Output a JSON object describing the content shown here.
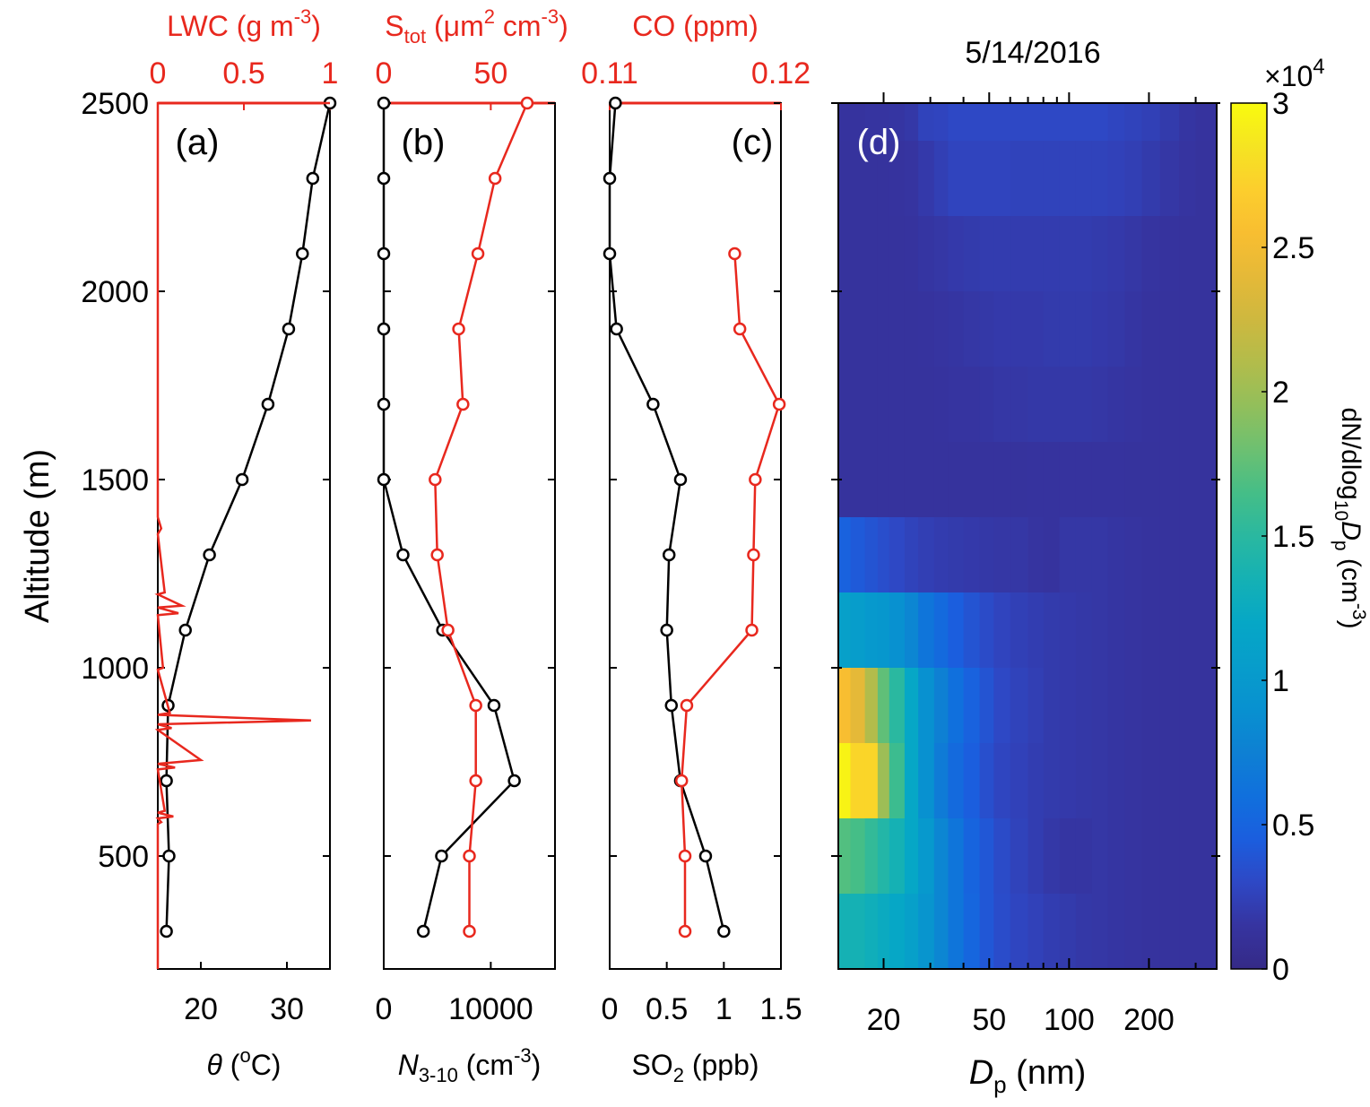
{
  "figure": {
    "date": "5/14/2016",
    "y_axis_label": "Altitude (m)",
    "colors": {
      "red": "#e8281e",
      "black": "#000000"
    }
  },
  "chart_data": [
    {
      "panel": "(a)",
      "type": "line",
      "ylim": [
        200,
        2500
      ],
      "yticks": [
        500,
        1000,
        1500,
        2000,
        2500
      ],
      "bottom_axis": {
        "label_main": "θ",
        "label_rest": " (",
        "label_sup": "o",
        "label_end": "C)",
        "range": [
          15,
          35
        ],
        "ticks": [
          20,
          30
        ],
        "tick_labels": [
          "20",
          "30"
        ]
      },
      "top_axis": {
        "label_main": "LWC (g m",
        "label_sup": "-3",
        "label_end": ")",
        "range": [
          0,
          1
        ],
        "ticks": [
          0,
          0.5,
          1
        ],
        "tick_labels": [
          "0",
          "0.5",
          "1"
        ]
      },
      "series": [
        {
          "axis": "bottom",
          "color": "black",
          "marker": "circle",
          "x": [
            35.0,
            33.0,
            31.8,
            30.2,
            27.8,
            24.8,
            21.0,
            18.2,
            16.2,
            16.0,
            16.3,
            16.0
          ],
          "y": [
            2500,
            2300,
            2100,
            1900,
            1700,
            1500,
            1300,
            1100,
            900,
            700,
            500,
            300
          ]
        },
        {
          "axis": "top",
          "color": "red",
          "marker": "none",
          "profile": [
            [
              1.0,
              2500
            ],
            [
              0.0,
              2500
            ],
            [
              0.0,
              1400
            ],
            [
              0.02,
              1370
            ],
            [
              0.0,
              1355
            ],
            [
              0.04,
              1200
            ],
            [
              0.0,
              1195
            ],
            [
              0.14,
              1165
            ],
            [
              0.0,
              1160
            ],
            [
              0.12,
              1145
            ],
            [
              0.0,
              1140
            ],
            [
              0.03,
              1000
            ],
            [
              0.0,
              995
            ],
            [
              0.07,
              880
            ],
            [
              0.0,
              875
            ],
            [
              0.89,
              860
            ],
            [
              0.0,
              850
            ],
            [
              0.08,
              840
            ],
            [
              0.0,
              835
            ],
            [
              0.25,
              755
            ],
            [
              0.0,
              745
            ],
            [
              0.1,
              735
            ],
            [
              0.0,
              730
            ],
            [
              0.04,
              620
            ],
            [
              0.0,
              615
            ],
            [
              0.09,
              605
            ],
            [
              0.0,
              600
            ],
            [
              0.02,
              590
            ],
            [
              0.0,
              585
            ],
            [
              0.0,
              200
            ]
          ]
        }
      ]
    },
    {
      "panel": "(b)",
      "type": "line",
      "ylim": [
        200,
        2500
      ],
      "yticks": [
        500,
        1000,
        1500,
        2000,
        2500
      ],
      "bottom_axis": {
        "label_main": "N",
        "label_sub": "3-10",
        "label_rest": " (cm",
        "label_sup": "-3",
        "label_end": ")",
        "range": [
          0,
          16000
        ],
        "ticks": [
          0,
          10000
        ],
        "tick_labels": [
          "0",
          "10000"
        ]
      },
      "top_axis": {
        "label_main": "S",
        "label_sub": "tot",
        "label_rest": " (μm",
        "label_sup": "2",
        "label_mid": " cm",
        "label_sup2": "-3",
        "label_end": ")",
        "range": [
          0,
          80
        ],
        "ticks": [
          0,
          50
        ],
        "tick_labels": [
          "0",
          "50"
        ]
      },
      "series": [
        {
          "axis": "bottom",
          "color": "black",
          "marker": "circle",
          "x": [
            0,
            0,
            0,
            0,
            0,
            0,
            1800,
            5500,
            10300,
            12200,
            5400,
            3700
          ],
          "y": [
            2500,
            2300,
            2100,
            1900,
            1700,
            1500,
            1300,
            1100,
            900,
            700,
            500,
            300
          ]
        },
        {
          "axis": "top",
          "color": "red",
          "marker": "circle",
          "x": [
            67,
            52,
            44,
            35,
            37,
            24,
            25,
            30,
            43,
            43,
            40,
            40
          ],
          "y": [
            2500,
            2300,
            2100,
            1900,
            1700,
            1500,
            1300,
            1100,
            900,
            700,
            500,
            300
          ]
        }
      ]
    },
    {
      "panel": "(c)",
      "type": "line",
      "ylim": [
        200,
        2500
      ],
      "yticks": [
        500,
        1000,
        1500,
        2000,
        2500
      ],
      "bottom_axis": {
        "label_main": "SO",
        "label_sub": "2",
        "label_rest": " (ppb)",
        "range": [
          0,
          1.5
        ],
        "ticks": [
          0,
          0.5,
          1,
          1.5
        ],
        "tick_labels": [
          "0",
          "0.5",
          "1",
          "1.5"
        ]
      },
      "top_axis": {
        "label_main": "CO (ppm)",
        "range": [
          0.11,
          0.12
        ],
        "ticks": [
          0.11,
          0.12
        ],
        "tick_labels": [
          "0.11",
          "0.12"
        ]
      },
      "series": [
        {
          "axis": "bottom",
          "color": "black",
          "marker": "circle",
          "x": [
            0.05,
            0.0,
            0.0,
            0.06,
            0.38,
            0.62,
            0.52,
            0.5,
            0.54,
            0.62,
            0.84,
            1.0
          ],
          "y": [
            2500,
            2300,
            2100,
            1900,
            1700,
            1500,
            1300,
            1100,
            900,
            700,
            500,
            300
          ]
        },
        {
          "axis": "top",
          "color": "red",
          "marker": "circle",
          "x": [
            0.1173,
            0.1176,
            0.1199,
            0.1185,
            0.1184,
            0.1183,
            0.1145,
            0.1142,
            0.1144,
            0.1144
          ],
          "y": [
            2100,
            1900,
            1700,
            1500,
            1300,
            1100,
            900,
            700,
            500,
            300
          ]
        }
      ]
    },
    {
      "panel": "(d)",
      "type": "heatmap",
      "x_label_main": "D",
      "x_label_sub": "p",
      "x_label_end": " (nm)",
      "x_scale": "log",
      "xlim": [
        13.5,
        360
      ],
      "xticks": [
        20,
        50,
        100,
        200
      ],
      "xtick_labels": [
        "20",
        "50",
        "100",
        "200"
      ],
      "ylim": [
        200,
        2500
      ],
      "colorbar": {
        "range": [
          0,
          30000
        ],
        "ticks": [
          0,
          5000,
          10000,
          15000,
          20000,
          25000,
          30000
        ],
        "tick_labels": [
          "0",
          "0.5",
          "1",
          "1.5",
          "2",
          "2.5",
          "3"
        ],
        "exponent_prefix": "×10",
        "exponent_sup": "4",
        "label_main": "dN/dlog",
        "label_sub": "10",
        "label_var": "D",
        "label_var_sub": "p",
        "label_rest": " (cm",
        "label_sup": "-3",
        "label_end": ")"
      },
      "x_bin_edges": [
        13.5,
        15,
        17,
        19,
        21,
        24,
        27,
        31,
        35,
        40,
        46,
        52,
        60,
        70,
        80,
        92,
        106,
        122,
        140,
        162,
        188,
        220,
        260,
        300,
        360
      ],
      "rows": [
        {
          "y_range": [
            2400,
            2500
          ],
          "values": [
            1400,
            1400,
            1500,
            1500,
            1600,
            1800,
            2600,
            2700,
            3000,
            3000,
            3000,
            3000,
            3000,
            3000,
            3000,
            3000,
            3000,
            3000,
            2800,
            2600,
            2400,
            2000,
            1600,
            1400
          ]
        },
        {
          "y_range": [
            2200,
            2400
          ],
          "values": [
            1300,
            1300,
            1300,
            1300,
            1400,
            1500,
            1900,
            2300,
            2700,
            2700,
            2700,
            2700,
            2600,
            2600,
            2600,
            2600,
            2600,
            2600,
            2500,
            2300,
            2000,
            1700,
            1500,
            1300
          ]
        },
        {
          "y_range": [
            2000,
            2200
          ],
          "values": [
            1300,
            1300,
            1300,
            1300,
            1300,
            1400,
            1600,
            1700,
            1900,
            2000,
            2100,
            2100,
            2100,
            2100,
            2100,
            2100,
            2100,
            2000,
            1900,
            1700,
            1500,
            1400,
            1300,
            1300
          ]
        },
        {
          "y_range": [
            1800,
            2000
          ],
          "values": [
            1300,
            1300,
            1300,
            1300,
            1300,
            1300,
            1400,
            1500,
            1600,
            1700,
            1800,
            1900,
            1900,
            1900,
            2000,
            2000,
            2000,
            1900,
            1800,
            1600,
            1400,
            1300,
            1300,
            1300
          ]
        },
        {
          "y_range": [
            1600,
            1800
          ],
          "values": [
            1300,
            1300,
            1300,
            1300,
            1300,
            1300,
            1300,
            1400,
            1500,
            1500,
            1600,
            1700,
            1700,
            1800,
            1800,
            1800,
            1800,
            1700,
            1600,
            1500,
            1400,
            1300,
            1300,
            1300
          ]
        },
        {
          "y_range": [
            1400,
            1600
          ],
          "values": [
            1300,
            1300,
            1300,
            1300,
            1300,
            1300,
            1300,
            1300,
            1300,
            1300,
            1300,
            1300,
            1300,
            1400,
            1400,
            1400,
            1400,
            1400,
            1400,
            1300,
            1300,
            1300,
            1300,
            1300
          ]
        },
        {
          "y_range": [
            1200,
            1400
          ],
          "values": [
            4800,
            4200,
            3800,
            3400,
            3000,
            2600,
            2300,
            2100,
            2000,
            1900,
            1800,
            1700,
            1700,
            1500,
            1400,
            1700,
            1700,
            1700,
            1600,
            1500,
            1400,
            1300,
            1300,
            1300
          ]
        },
        {
          "y_range": [
            1000,
            1200
          ],
          "values": [
            11000,
            10500,
            10000,
            9800,
            9000,
            8000,
            6500,
            5500,
            4500,
            3800,
            3200,
            2700,
            2400,
            2200,
            2000,
            1900,
            1800,
            1700,
            1600,
            1500,
            1400,
            1300,
            1300,
            1300
          ]
        },
        {
          "y_range": [
            800,
            1000
          ],
          "values": [
            25500,
            24000,
            21000,
            17500,
            15000,
            12000,
            9000,
            7500,
            6000,
            4800,
            3800,
            3000,
            2600,
            2300,
            2000,
            1900,
            1800,
            1700,
            1600,
            1500,
            1400,
            1300,
            1300,
            1300
          ]
        },
        {
          "y_range": [
            600,
            800
          ],
          "values": [
            29500,
            27500,
            27500,
            20000,
            16000,
            12000,
            9000,
            7000,
            5500,
            4500,
            3500,
            2800,
            2500,
            2200,
            2000,
            1900,
            1800,
            1700,
            1600,
            1500,
            1400,
            1300,
            1300,
            1300
          ]
        },
        {
          "y_range": [
            400,
            600
          ],
          "values": [
            17000,
            16500,
            15500,
            14500,
            13500,
            12000,
            10000,
            8000,
            6500,
            5000,
            4000,
            3200,
            2600,
            2200,
            1800,
            1600,
            1600,
            1700,
            1600,
            1500,
            1400,
            1300,
            1300,
            1300
          ]
        },
        {
          "y_range": [
            200,
            400
          ],
          "values": [
            13500,
            13500,
            13000,
            12500,
            12000,
            11000,
            9500,
            8000,
            6500,
            5200,
            4000,
            3300,
            2800,
            2500,
            2200,
            2000,
            1800,
            1700,
            1600,
            1500,
            1400,
            1300,
            1300,
            1300
          ]
        }
      ]
    }
  ]
}
